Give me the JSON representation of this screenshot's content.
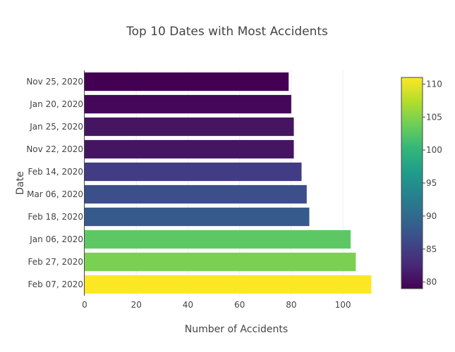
{
  "chart_data": {
    "type": "bar",
    "orientation": "horizontal",
    "title": "Top 10 Dates with Most Accidents",
    "xlabel": "Number of Accidents",
    "ylabel": "Date",
    "xlim": [
      0,
      112
    ],
    "x_ticks": [
      0,
      20,
      40,
      60,
      80,
      100
    ],
    "grid": "vertical",
    "categories": [
      "Nov 25, 2020",
      "Jan 20, 2020",
      "Jan 25, 2020",
      "Nov 22, 2020",
      "Feb 14, 2020",
      "Mar 06, 2020",
      "Feb 18, 2020",
      "Jan 06, 2020",
      "Feb 27, 2020",
      "Feb 07, 2020"
    ],
    "values": [
      79,
      80,
      81,
      81,
      84,
      86,
      87,
      103,
      105,
      111
    ],
    "bar_colors": [
      "#440154",
      "#45075a",
      "#461562",
      "#461562",
      "#423c84",
      "#3c4f8a",
      "#375a8c",
      "#5dc863",
      "#7ad151",
      "#fde725"
    ],
    "colorscale": {
      "name": "Viridis",
      "min": 79,
      "max": 111,
      "ticks": [
        80,
        85,
        90,
        95,
        100,
        105,
        110
      ],
      "stops": [
        "#440154",
        "#482878",
        "#3e4989",
        "#31688e",
        "#26828e",
        "#1f9e89",
        "#35b779",
        "#6ece58",
        "#b5de2b",
        "#fde725"
      ]
    }
  }
}
